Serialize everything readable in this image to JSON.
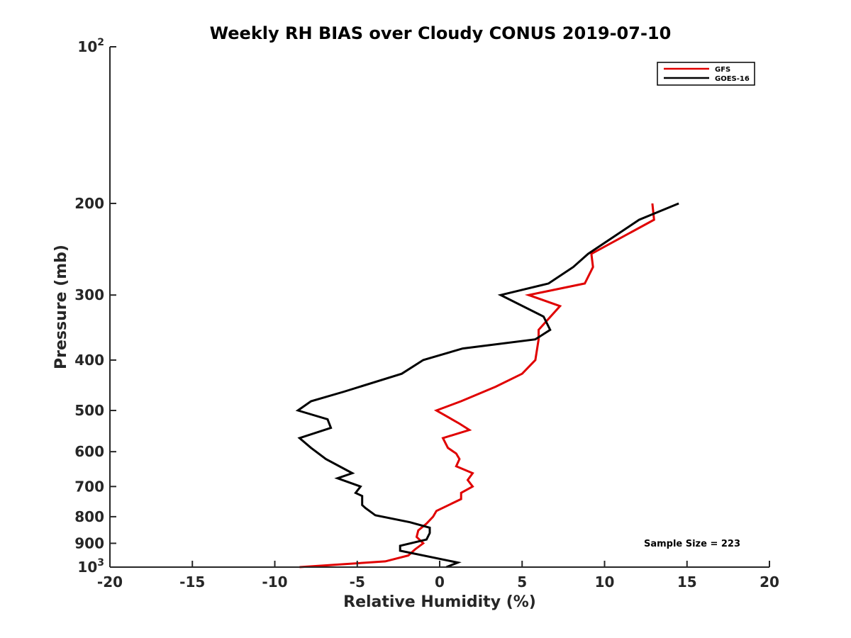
{
  "chart_data": {
    "type": "line",
    "title": "Weekly RH BIAS over Cloudy CONUS 2019-07-10",
    "xlabel": "Relative Humidity (%)",
    "ylabel": "Pressure (mb)",
    "xlim": [
      -20,
      20
    ],
    "ylim": [
      100,
      1000
    ],
    "y_scale": "log",
    "y_reversed": true,
    "grid": false,
    "legend_position": "top-right",
    "x_ticks": [
      -20,
      -15,
      -10,
      -5,
      0,
      5,
      10,
      15,
      20
    ],
    "x_tick_labels": [
      "-20",
      "-15",
      "-10",
      "-5",
      "0",
      "5",
      "10",
      "15",
      "20"
    ],
    "y_ticks": [
      100,
      200,
      300,
      400,
      500,
      600,
      700,
      800,
      900,
      1000
    ],
    "y_tick_labels": [
      "10²",
      "200",
      "300",
      "400",
      "500",
      "600",
      "700",
      "800",
      "900",
      "10³"
    ],
    "annotation": "Sample Size = 223",
    "series": [
      {
        "name": "GFS",
        "color": "#e00000",
        "points": [
          [
            12.9,
            200
          ],
          [
            13.0,
            215
          ],
          [
            9.2,
            250
          ],
          [
            9.3,
            265
          ],
          [
            8.8,
            285
          ],
          [
            5.4,
            300
          ],
          [
            7.3,
            315
          ],
          [
            6.0,
            350
          ],
          [
            6.0,
            365
          ],
          [
            5.8,
            400
          ],
          [
            5.0,
            425
          ],
          [
            3.4,
            450
          ],
          [
            1.3,
            480
          ],
          [
            -0.2,
            500
          ],
          [
            1.2,
            530
          ],
          [
            1.8,
            545
          ],
          [
            0.2,
            565
          ],
          [
            0.5,
            590
          ],
          [
            1.0,
            605
          ],
          [
            1.2,
            620
          ],
          [
            1.0,
            640
          ],
          [
            2.0,
            660
          ],
          [
            1.7,
            680
          ],
          [
            2.0,
            700
          ],
          [
            1.3,
            720
          ],
          [
            1.3,
            740
          ],
          [
            -0.2,
            780
          ],
          [
            -0.4,
            800
          ],
          [
            -0.8,
            825
          ],
          [
            -1.3,
            850
          ],
          [
            -1.4,
            875
          ],
          [
            -1.0,
            900
          ],
          [
            -1.5,
            925
          ],
          [
            -1.9,
            950
          ],
          [
            -3.3,
            975
          ],
          [
            -8.5,
            1000
          ]
        ]
      },
      {
        "name": "GOES-16",
        "color": "#000000",
        "points": [
          [
            14.5,
            200
          ],
          [
            12.1,
            215
          ],
          [
            9.0,
            250
          ],
          [
            8.1,
            265
          ],
          [
            6.6,
            285
          ],
          [
            3.7,
            300
          ],
          [
            6.3,
            330
          ],
          [
            6.7,
            350
          ],
          [
            5.8,
            365
          ],
          [
            1.4,
            380
          ],
          [
            -1.0,
            400
          ],
          [
            -2.3,
            425
          ],
          [
            -5.8,
            460
          ],
          [
            -7.8,
            480
          ],
          [
            -8.6,
            500
          ],
          [
            -6.8,
            520
          ],
          [
            -6.6,
            540
          ],
          [
            -8.5,
            565
          ],
          [
            -7.8,
            590
          ],
          [
            -6.9,
            620
          ],
          [
            -5.3,
            660
          ],
          [
            -6.2,
            675
          ],
          [
            -4.8,
            700
          ],
          [
            -5.1,
            720
          ],
          [
            -4.7,
            730
          ],
          [
            -4.7,
            760
          ],
          [
            -4.5,
            770
          ],
          [
            -3.9,
            795
          ],
          [
            -1.8,
            820
          ],
          [
            -0.6,
            840
          ],
          [
            -0.6,
            860
          ],
          [
            -0.8,
            885
          ],
          [
            -2.4,
            910
          ],
          [
            -2.4,
            930
          ],
          [
            1.1,
            980
          ],
          [
            0.4,
            1000
          ]
        ]
      }
    ]
  }
}
